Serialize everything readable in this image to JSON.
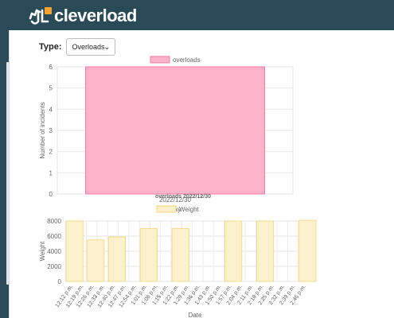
{
  "brand": {
    "name": "cleverload"
  },
  "filter": {
    "label": "Type:",
    "selected": "Overloads"
  },
  "chart_data": [
    {
      "type": "bar",
      "title": "",
      "xlabel": "Day",
      "ylabel": "Number of incidents",
      "categories": [
        "2022/12/30"
      ],
      "series": [
        {
          "name": "overloads",
          "values": [
            6
          ]
        }
      ],
      "ylim": [
        0,
        6
      ],
      "yticks": [
        0,
        1,
        2,
        3,
        4,
        5,
        6
      ],
      "legend": "top",
      "grid": true,
      "colors": {
        "fill": "#fdb3c9",
        "stroke": "#f47aa0"
      }
    },
    {
      "type": "bar",
      "title": "overloads 2022/12/30",
      "xlabel": "Date",
      "ylabel": "Weight",
      "categories": [
        "12:12 p.m.",
        "12:19 p.m.",
        "12:26 p.m.",
        "12:33 p.m.",
        "12:40 p.m.",
        "12:47 p.m.",
        "12:54 p.m.",
        "1:01 p.m.",
        "1:08 p.m.",
        "1:15 p.m.",
        "1:22 p.m.",
        "1:29 p.m.",
        "1:36 p.m.",
        "1:43 p.m.",
        "1:50 p.m.",
        "1:57 p.m.",
        "2:04 p.m.",
        "2:11 p.m.",
        "2:18 p.m.",
        "2:25 p.m.",
        "2:32 p.m.",
        "2:39 p.m.",
        "2:46 p.m."
      ],
      "series": [
        {
          "name": "Weight",
          "values": [
            8000,
            0,
            5500,
            0,
            5900,
            0,
            0,
            7000,
            0,
            0,
            7000,
            0,
            0,
            0,
            0,
            8000,
            0,
            0,
            8000,
            0,
            0,
            0,
            8100
          ]
        }
      ],
      "ylim": [
        0,
        8000
      ],
      "yticks": [
        0,
        2000,
        4000,
        6000,
        8000
      ],
      "legend": "top",
      "grid": true,
      "colors": {
        "fill": "#fdf0cc",
        "stroke": "#f5d47a"
      }
    }
  ]
}
